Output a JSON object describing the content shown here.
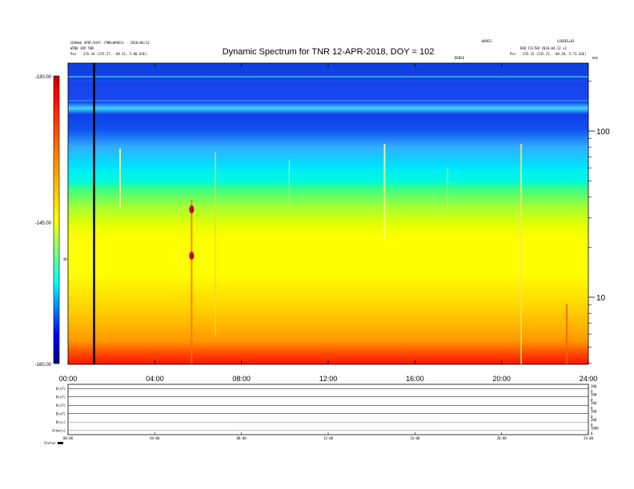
{
  "header": {
    "line1_left": "CDAWeb SPDF/GSFC (TNR+WAVES) - 2018/04/12",
    "line2_left": "WIND 3DP TNR",
    "pos_left_label": "Pos",
    "pos_left_value": "235.34 (235.27, -68.31, 5.88 GSE)",
    "center_tag": "WAVES",
    "right_line1": "LOGRES=81",
    "right_line2": "RAD_FILTER 2018-04-12 v2",
    "pos_right_label": "Pos",
    "pos_right_value": "235.22 (235.21, -68.28, 5.73 GSE)",
    "mini_label": "DENSE",
    "tr_label": "kHz"
  },
  "chart_data": {
    "type": "heatmap",
    "title": "Dynamic Spectrum for TNR 12-APR-2018, DOY = 102",
    "x_ticks": [
      "00:00",
      "04:00",
      "08:00",
      "12:00",
      "16:00",
      "20:00",
      "24:00"
    ],
    "x_range_hours": [
      0,
      24
    ],
    "y_scale": "log",
    "y_ticks": [
      "10",
      "100"
    ],
    "colorbar": {
      "ticks": [
        "-130.00",
        "-145.00",
        "-160.00"
      ],
      "range": [
        -160,
        -130
      ],
      "label": "dB",
      "colors": [
        "#c00000",
        "#ff0000",
        "#ff8000",
        "#ffff00",
        "#00ffff",
        "#0000ff",
        "#000080"
      ]
    },
    "data_gap_marker_hours": 1.2,
    "bottom_panels": [
      {
        "label": "B(nT)",
        "right_ticks": [
          "200",
          "0"
        ]
      },
      {
        "label": "B(nT)",
        "right_ticks": [
          "200",
          "0"
        ]
      },
      {
        "label": "B(nT)",
        "right_ticks": [
          "200",
          "0"
        ]
      },
      {
        "label": "B(nT)",
        "right_ticks": [
          "200",
          "0"
        ]
      },
      {
        "label": "N(cc)",
        "right_ticks": [
          "200",
          "0"
        ]
      },
      {
        "label": "V(km/s)",
        "right_ticks": [
          "1000",
          "0"
        ]
      }
    ],
    "bottom_x_ticks": [
      "00:00",
      "04:00",
      "08:00",
      "12:00",
      "16:00",
      "20:00",
      "24:00"
    ],
    "footer_label": "Status"
  }
}
